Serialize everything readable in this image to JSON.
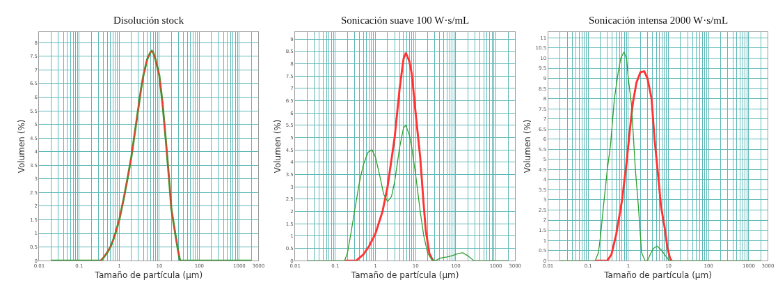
{
  "chart_data": [
    {
      "type": "line",
      "title": "Disolución stock",
      "xlabel": "Tamaño de partícula (µm)",
      "ylabel": "Volumen (%)",
      "log": "x",
      "grid": true,
      "marker": "none",
      "line_style": "solid",
      "xlim": [
        0.01,
        3000
      ],
      "xticks": [
        0.01,
        0.1,
        1,
        10,
        100,
        1000,
        3000
      ],
      "ylim": [
        0,
        8.4
      ],
      "yticks": [
        0,
        0.5,
        1,
        1.5,
        2,
        2.5,
        3,
        3.5,
        4,
        4.5,
        5,
        5.5,
        6,
        6.5,
        7,
        7.5,
        8
      ],
      "series": [
        {
          "color": "#2e9e2e",
          "x": [
            0.02,
            0.35,
            0.4,
            0.5,
            0.6,
            0.7,
            0.8,
            1.0,
            1.3,
            1.6,
            2.0,
            2.5,
            3.0,
            3.5,
            4.0,
            5.0,
            6.0,
            6.5,
            7.0,
            8.0,
            10,
            12,
            15,
            18,
            20,
            25,
            30,
            33,
            2000
          ],
          "values": [
            0,
            0,
            0.1,
            0.3,
            0.5,
            0.75,
            1.0,
            1.5,
            2.3,
            3.0,
            3.8,
            4.8,
            5.6,
            6.3,
            6.8,
            7.4,
            7.65,
            7.7,
            7.65,
            7.4,
            6.8,
            5.8,
            4.2,
            2.8,
            1.9,
            1.0,
            0.3,
            0,
            0
          ]
        },
        {
          "color": "#ff3333",
          "x": [
            0.33,
            0.4,
            0.5,
            0.6,
            0.7,
            0.8,
            1.0,
            1.3,
            1.6,
            2.0,
            2.5,
            3.0,
            3.5,
            4.0,
            5.0,
            6.0,
            6.5,
            7.0,
            8.0,
            10,
            12,
            15,
            18,
            20,
            25,
            30,
            33
          ],
          "values": [
            0,
            0.12,
            0.32,
            0.52,
            0.76,
            1.0,
            1.5,
            2.3,
            3.0,
            3.8,
            4.8,
            5.6,
            6.3,
            6.8,
            7.4,
            7.65,
            7.7,
            7.65,
            7.4,
            6.8,
            5.8,
            4.2,
            2.8,
            1.9,
            1.0,
            0.3,
            0
          ]
        }
      ]
    },
    {
      "type": "line",
      "title": "Sonicación suave 100 W·s/mL",
      "xlabel": "Tamaño de partícula (µm)",
      "ylabel": "Volumen (%)",
      "log": "x",
      "grid": true,
      "marker": "none",
      "line_style": "solid",
      "xlim": [
        0.01,
        3000
      ],
      "xticks": [
        0.01,
        0.1,
        1,
        10,
        100,
        1000,
        3000
      ],
      "ylim": [
        0,
        9.3
      ],
      "yticks": [
        0,
        0.5,
        1,
        1.5,
        2,
        2.5,
        3,
        3.5,
        4,
        4.5,
        5,
        5.5,
        6,
        6.5,
        7,
        7.5,
        8,
        8.5,
        9
      ],
      "series": [
        {
          "color": "#ff3333",
          "x": [
            0.17,
            0.33,
            0.5,
            0.7,
            1.0,
            1.5,
            2.0,
            3.0,
            4.0,
            5.0,
            5.7,
            7.0,
            8.0,
            10,
            13,
            16,
            18,
            22,
            27
          ],
          "values": [
            0,
            0,
            0.25,
            0.6,
            1.1,
            2.0,
            3.0,
            5.0,
            7.0,
            8.2,
            8.45,
            8.1,
            7.6,
            6.0,
            4.2,
            2.2,
            1.2,
            0.3,
            0
          ]
        },
        {
          "color": "#2e9e2e",
          "x": [
            0.02,
            0.17,
            0.2,
            0.25,
            0.3,
            0.4,
            0.5,
            0.65,
            0.82,
            1.0,
            1.3,
            1.6,
            2.0,
            2.5,
            3,
            4,
            5,
            5.7,
            7,
            8,
            10,
            13,
            16,
            20,
            25,
            32,
            40,
            60,
            80,
            120,
            150,
            200,
            280,
            2000
          ],
          "values": [
            0,
            0,
            0.3,
            1.2,
            2.0,
            3.2,
            3.9,
            4.4,
            4.5,
            4.2,
            3.4,
            2.7,
            2.4,
            2.6,
            3.2,
            4.6,
            5.4,
            5.5,
            5.1,
            4.6,
            3.5,
            2.0,
            1.0,
            0.3,
            0.05,
            0,
            0.1,
            0.15,
            0.2,
            0.3,
            0.32,
            0.2,
            0,
            0
          ]
        }
      ]
    },
    {
      "type": "line",
      "title": "Sonicación intensa 2000 W·s/mL",
      "xlabel": "Tamaño de partícula (µm)",
      "ylabel": "Volumen (%)",
      "log": "x",
      "grid": true,
      "marker": "none",
      "line_style": "solid",
      "xlim": [
        0.01,
        3000
      ],
      "xticks": [
        0.01,
        0.1,
        1,
        10,
        100,
        1000,
        3000
      ],
      "ylim": [
        0,
        11.3
      ],
      "yticks": [
        0,
        0.5,
        1,
        1.5,
        2,
        2.5,
        3,
        3.5,
        4,
        4.5,
        5,
        5.5,
        6,
        6.5,
        7,
        7.5,
        8,
        8.5,
        9,
        9.5,
        10,
        10.5,
        11
      ],
      "series": [
        {
          "color": "#ff3333",
          "x": [
            0.15,
            0.3,
            0.38,
            0.5,
            0.7,
            0.9,
            1.1,
            1.3,
            1.6,
            2.0,
            2.5,
            3.0,
            3.8,
            4.5,
            5.6,
            6.5,
            8.1,
            9.5,
            11,
            12
          ],
          "values": [
            0,
            0,
            0.3,
            1.3,
            3.0,
            4.8,
            6.5,
            7.8,
            8.8,
            9.3,
            9.35,
            9.0,
            8.0,
            6.0,
            4.1,
            2.7,
            1.6,
            0.6,
            0.1,
            0
          ]
        },
        {
          "color": "#2e9e2e",
          "x": [
            0.02,
            0.15,
            0.18,
            0.2,
            0.25,
            0.3,
            0.36,
            0.45,
            0.56,
            0.65,
            0.78,
            0.9,
            1.0,
            1.2,
            1.5,
            1.78,
            2.14,
            2.6,
            3.0,
            3.5,
            4.2,
            5.2,
            6.5,
            8,
            10,
            11,
            2000
          ],
          "values": [
            0,
            0,
            0.4,
            1.1,
            3.0,
            4.5,
            5.7,
            8.0,
            9.3,
            10.0,
            10.3,
            10.0,
            9.0,
            7.7,
            4.5,
            2.7,
            0.4,
            0,
            0,
            0.3,
            0.6,
            0.72,
            0.55,
            0.3,
            0.05,
            0,
            0
          ]
        }
      ]
    }
  ]
}
